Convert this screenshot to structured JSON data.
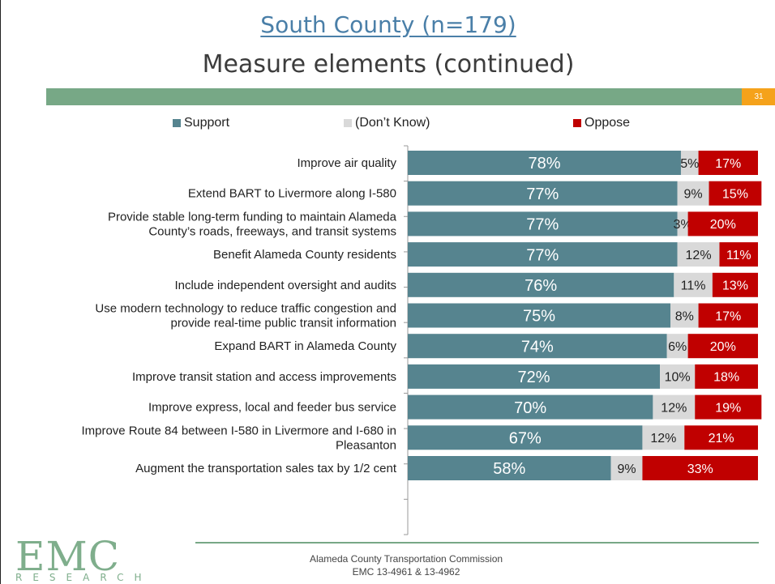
{
  "title": {
    "line1": "South County (n=179)",
    "line2": "Measure elements (continued)"
  },
  "page_number": "31",
  "colors": {
    "support": "#56848f",
    "dont_know": "#d9d9d9",
    "oppose": "#c00000",
    "accent_green": "#77a886",
    "accent_orange": "#f5a21b"
  },
  "legend": [
    {
      "label": "Support",
      "color": "#56848f"
    },
    {
      "label": "(Don’t Know)",
      "color": "#d9d9d9"
    },
    {
      "label": "Oppose",
      "color": "#c00000"
    }
  ],
  "chart_data": {
    "type": "bar",
    "orientation": "horizontal",
    "stacked": true,
    "categories": [
      [
        "Improve air quality"
      ],
      [
        "Extend BART to Livermore along I-580"
      ],
      [
        "Provide stable long-term funding to maintain Alameda",
        "County’s roads, freeways, and transit systems"
      ],
      [
        "Benefit Alameda County residents"
      ],
      [
        "Include independent oversight and audits"
      ],
      [
        "Use modern technology to reduce traffic congestion and",
        "provide real-time public transit information"
      ],
      [
        "Expand BART in Alameda County"
      ],
      [
        "Improve transit station and access improvements"
      ],
      [
        "Improve express, local and feeder bus service"
      ],
      [
        "Improve Route 84 between I-580 in Livermore and I-680 in",
        "Pleasanton"
      ],
      [
        "Augment the transportation sales tax by 1/2 cent"
      ]
    ],
    "series": [
      {
        "name": "Support",
        "values": [
          78,
          77,
          77,
          77,
          76,
          75,
          74,
          72,
          70,
          67,
          58
        ]
      },
      {
        "name": "(Don’t Know)",
        "values": [
          5,
          9,
          3,
          12,
          11,
          8,
          6,
          10,
          12,
          12,
          9
        ]
      },
      {
        "name": "Oppose",
        "values": [
          17,
          15,
          20,
          11,
          13,
          17,
          20,
          18,
          19,
          21,
          33
        ]
      }
    ],
    "value_suffix": "%",
    "xlim": [
      0,
      100
    ],
    "legend_position": "top"
  },
  "footer": {
    "line1": "Alameda County Transportation Commission",
    "line2": "EMC 13-4961 & 13-4962"
  },
  "logo": {
    "big": "EMC",
    "small": "RESEARCH"
  }
}
